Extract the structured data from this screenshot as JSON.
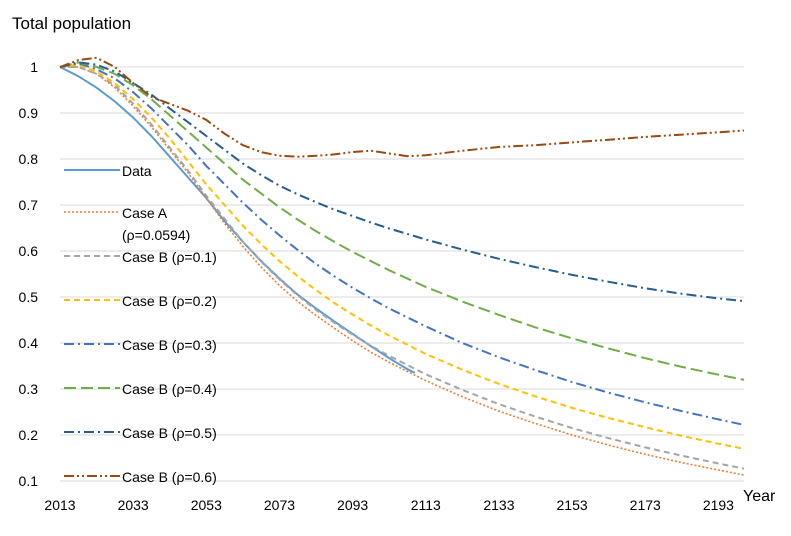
{
  "chart_data": {
    "type": "line",
    "title": "",
    "ylabel": "Total population",
    "xlabel": "Year",
    "x_range": [
      2013,
      2200
    ],
    "ylim": [
      0.1,
      1.0
    ],
    "x_ticks": [
      "2013",
      "2033",
      "2053",
      "2073",
      "2093",
      "2113",
      "2133",
      "2153",
      "2173",
      "2193"
    ],
    "y_ticks": [
      "0.1",
      "0.2",
      "0.3",
      "0.4",
      "0.5",
      "0.6",
      "0.7",
      "0.8",
      "0.9",
      "1"
    ],
    "grid": "horizontal",
    "legend_position": "left",
    "series": [
      {
        "name": "Data",
        "color": "#5b9bd5",
        "dash": "solid",
        "points": [
          [
            2013,
            1.0
          ],
          [
            2018,
            0.98
          ],
          [
            2023,
            0.955
          ],
          [
            2028,
            0.925
          ],
          [
            2033,
            0.89
          ],
          [
            2038,
            0.85
          ],
          [
            2043,
            0.805
          ],
          [
            2048,
            0.76
          ],
          [
            2053,
            0.715
          ],
          [
            2058,
            0.665
          ],
          [
            2063,
            0.62
          ],
          [
            2068,
            0.578
          ],
          [
            2073,
            0.54
          ],
          [
            2078,
            0.505
          ],
          [
            2083,
            0.475
          ],
          [
            2088,
            0.447
          ],
          [
            2093,
            0.42
          ],
          [
            2098,
            0.393
          ],
          [
            2103,
            0.367
          ],
          [
            2108,
            0.343
          ],
          [
            2110,
            0.335
          ]
        ]
      },
      {
        "name": "Case A\n(ρ=0.0594)",
        "color": "#ed7d31",
        "dash": "dotted",
        "points": [
          [
            2013,
            1.0
          ],
          [
            2018,
            1.0
          ],
          [
            2023,
            0.985
          ],
          [
            2028,
            0.955
          ],
          [
            2033,
            0.915
          ],
          [
            2038,
            0.87
          ],
          [
            2043,
            0.82
          ],
          [
            2048,
            0.77
          ],
          [
            2053,
            0.715
          ],
          [
            2058,
            0.66
          ],
          [
            2063,
            0.61
          ],
          [
            2068,
            0.565
          ],
          [
            2073,
            0.525
          ],
          [
            2078,
            0.49
          ],
          [
            2083,
            0.46
          ],
          [
            2088,
            0.432
          ],
          [
            2093,
            0.405
          ],
          [
            2098,
            0.38
          ],
          [
            2103,
            0.358
          ],
          [
            2113,
            0.318
          ],
          [
            2123,
            0.283
          ],
          [
            2133,
            0.252
          ],
          [
            2143,
            0.225
          ],
          [
            2153,
            0.2
          ],
          [
            2163,
            0.178
          ],
          [
            2173,
            0.158
          ],
          [
            2183,
            0.14
          ],
          [
            2193,
            0.124
          ],
          [
            2200,
            0.113
          ]
        ]
      },
      {
        "name": "Case B (ρ=0.1)",
        "color": "#a5a5a5",
        "dash": "dashed",
        "points": [
          [
            2013,
            1.0
          ],
          [
            2018,
            1.0
          ],
          [
            2023,
            0.985
          ],
          [
            2028,
            0.96
          ],
          [
            2033,
            0.92
          ],
          [
            2038,
            0.875
          ],
          [
            2043,
            0.825
          ],
          [
            2048,
            0.775
          ],
          [
            2053,
            0.72
          ],
          [
            2058,
            0.67
          ],
          [
            2063,
            0.62
          ],
          [
            2068,
            0.577
          ],
          [
            2073,
            0.538
          ],
          [
            2078,
            0.503
          ],
          [
            2083,
            0.472
          ],
          [
            2088,
            0.444
          ],
          [
            2093,
            0.418
          ],
          [
            2098,
            0.394
          ],
          [
            2103,
            0.372
          ],
          [
            2113,
            0.332
          ],
          [
            2123,
            0.298
          ],
          [
            2133,
            0.267
          ],
          [
            2143,
            0.24
          ],
          [
            2153,
            0.215
          ],
          [
            2163,
            0.193
          ],
          [
            2173,
            0.173
          ],
          [
            2183,
            0.155
          ],
          [
            2193,
            0.138
          ],
          [
            2200,
            0.127
          ]
        ]
      },
      {
        "name": "Case B (ρ=0.2)",
        "color": "#ffc000",
        "dash": "dashed",
        "points": [
          [
            2013,
            1.0
          ],
          [
            2018,
            1.005
          ],
          [
            2023,
            0.99
          ],
          [
            2028,
            0.965
          ],
          [
            2033,
            0.93
          ],
          [
            2038,
            0.89
          ],
          [
            2043,
            0.845
          ],
          [
            2048,
            0.795
          ],
          [
            2053,
            0.745
          ],
          [
            2058,
            0.7
          ],
          [
            2063,
            0.655
          ],
          [
            2068,
            0.615
          ],
          [
            2073,
            0.578
          ],
          [
            2078,
            0.545
          ],
          [
            2083,
            0.515
          ],
          [
            2088,
            0.487
          ],
          [
            2093,
            0.462
          ],
          [
            2098,
            0.438
          ],
          [
            2103,
            0.416
          ],
          [
            2113,
            0.376
          ],
          [
            2123,
            0.342
          ],
          [
            2133,
            0.311
          ],
          [
            2143,
            0.284
          ],
          [
            2153,
            0.259
          ],
          [
            2163,
            0.237
          ],
          [
            2173,
            0.217
          ],
          [
            2183,
            0.198
          ],
          [
            2193,
            0.181
          ],
          [
            2200,
            0.17
          ]
        ]
      },
      {
        "name": "Case B (ρ=0.3)",
        "color": "#4472c4",
        "dash": "dashdot",
        "points": [
          [
            2013,
            1.0
          ],
          [
            2018,
            1.008
          ],
          [
            2023,
            0.995
          ],
          [
            2028,
            0.975
          ],
          [
            2033,
            0.945
          ],
          [
            2038,
            0.91
          ],
          [
            2043,
            0.87
          ],
          [
            2048,
            0.83
          ],
          [
            2053,
            0.785
          ],
          [
            2058,
            0.745
          ],
          [
            2063,
            0.705
          ],
          [
            2068,
            0.668
          ],
          [
            2073,
            0.634
          ],
          [
            2078,
            0.602
          ],
          [
            2083,
            0.572
          ],
          [
            2088,
            0.545
          ],
          [
            2093,
            0.52
          ],
          [
            2098,
            0.497
          ],
          [
            2103,
            0.475
          ],
          [
            2113,
            0.436
          ],
          [
            2123,
            0.4
          ],
          [
            2133,
            0.369
          ],
          [
            2143,
            0.341
          ],
          [
            2153,
            0.315
          ],
          [
            2163,
            0.292
          ],
          [
            2173,
            0.271
          ],
          [
            2183,
            0.252
          ],
          [
            2193,
            0.234
          ],
          [
            2200,
            0.222
          ]
        ]
      },
      {
        "name": "Case B (ρ=0.4)",
        "color": "#70ad47",
        "dash": "longdash",
        "points": [
          [
            2013,
            1.0
          ],
          [
            2018,
            1.01
          ],
          [
            2023,
            1.0
          ],
          [
            2028,
            0.985
          ],
          [
            2033,
            0.96
          ],
          [
            2038,
            0.93
          ],
          [
            2043,
            0.895
          ],
          [
            2048,
            0.86
          ],
          [
            2053,
            0.825
          ],
          [
            2058,
            0.79
          ],
          [
            2063,
            0.755
          ],
          [
            2068,
            0.725
          ],
          [
            2073,
            0.695
          ],
          [
            2078,
            0.668
          ],
          [
            2083,
            0.643
          ],
          [
            2088,
            0.62
          ],
          [
            2093,
            0.598
          ],
          [
            2098,
            0.578
          ],
          [
            2103,
            0.558
          ],
          [
            2113,
            0.522
          ],
          [
            2123,
            0.49
          ],
          [
            2133,
            0.461
          ],
          [
            2143,
            0.434
          ],
          [
            2153,
            0.41
          ],
          [
            2163,
            0.388
          ],
          [
            2173,
            0.367
          ],
          [
            2183,
            0.348
          ],
          [
            2193,
            0.331
          ],
          [
            2200,
            0.32
          ]
        ]
      },
      {
        "name": "Case B (ρ=0.5)",
        "color": "#255e91",
        "dash": "dashdot",
        "points": [
          [
            2013,
            1.0
          ],
          [
            2018,
            1.01
          ],
          [
            2023,
            1.005
          ],
          [
            2028,
            0.99
          ],
          [
            2033,
            0.965
          ],
          [
            2038,
            0.94
          ],
          [
            2043,
            0.91
          ],
          [
            2048,
            0.88
          ],
          [
            2053,
            0.85
          ],
          [
            2058,
            0.82
          ],
          [
            2063,
            0.79
          ],
          [
            2068,
            0.765
          ],
          [
            2073,
            0.742
          ],
          [
            2078,
            0.723
          ],
          [
            2083,
            0.706
          ],
          [
            2088,
            0.69
          ],
          [
            2093,
            0.676
          ],
          [
            2098,
            0.662
          ],
          [
            2103,
            0.649
          ],
          [
            2113,
            0.625
          ],
          [
            2123,
            0.603
          ],
          [
            2133,
            0.583
          ],
          [
            2143,
            0.565
          ],
          [
            2153,
            0.548
          ],
          [
            2163,
            0.533
          ],
          [
            2173,
            0.519
          ],
          [
            2183,
            0.507
          ],
          [
            2193,
            0.497
          ],
          [
            2200,
            0.491
          ]
        ]
      },
      {
        "name": "Case B (ρ=0.6)",
        "color": "#9e480e",
        "dash": "dashdotdot",
        "points": [
          [
            2013,
            1.0
          ],
          [
            2018,
            1.015
          ],
          [
            2023,
            1.02
          ],
          [
            2028,
            1.0
          ],
          [
            2033,
            0.965
          ],
          [
            2038,
            0.935
          ],
          [
            2043,
            0.92
          ],
          [
            2048,
            0.905
          ],
          [
            2053,
            0.885
          ],
          [
            2058,
            0.855
          ],
          [
            2063,
            0.83
          ],
          [
            2068,
            0.815
          ],
          [
            2073,
            0.807
          ],
          [
            2078,
            0.805
          ],
          [
            2083,
            0.807
          ],
          [
            2088,
            0.81
          ],
          [
            2093,
            0.815
          ],
          [
            2098,
            0.818
          ],
          [
            2103,
            0.812
          ],
          [
            2108,
            0.806
          ],
          [
            2113,
            0.808
          ],
          [
            2123,
            0.818
          ],
          [
            2133,
            0.826
          ],
          [
            2143,
            0.83
          ],
          [
            2153,
            0.836
          ],
          [
            2163,
            0.842
          ],
          [
            2173,
            0.848
          ],
          [
            2183,
            0.853
          ],
          [
            2193,
            0.858
          ],
          [
            2200,
            0.862
          ]
        ]
      }
    ]
  }
}
